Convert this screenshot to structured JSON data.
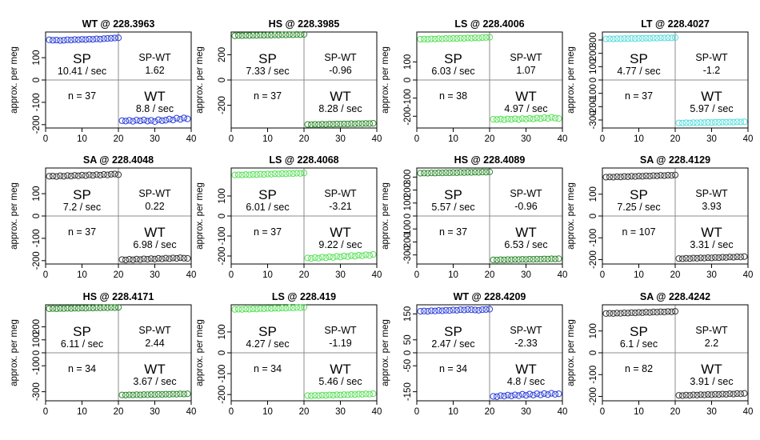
{
  "figure": {
    "ylabel": "approx. per meg",
    "x_ticks": [
      0,
      10,
      20,
      30,
      40
    ],
    "colors": {
      "blue": "#2b3fd9",
      "green": "#2e8b2e",
      "lightgreen": "#55e055",
      "cyan": "#55dddd",
      "black": "#333333",
      "divider": "#8c8c8c",
      "frame": "#000000"
    }
  },
  "chart_data": [
    {
      "type": "scatter",
      "title": "WT @ 228.3963",
      "color": "blue",
      "xlim": [
        0,
        40
      ],
      "ylim": [
        -215,
        215
      ],
      "yticks": [
        -200,
        -100,
        0,
        100
      ],
      "sp_label": "SP",
      "sp_rate": "10.41 / sec",
      "diff_label": "SP-WT",
      "diff_value": "1.62",
      "n_text": "n = 37",
      "wt_label": "WT",
      "wt_rate": "8.8 / sec",
      "sp_values": [
        180,
        178,
        179,
        177,
        178,
        180,
        179,
        181,
        180,
        182,
        181,
        183,
        182,
        184,
        183,
        185,
        186,
        187,
        188,
        189
      ],
      "wt_values": [
        -182,
        -184,
        -181,
        -185,
        -180,
        -183,
        -179,
        -184,
        -181,
        -186,
        -178,
        -182,
        -180,
        -175,
        -179,
        -171,
        -176,
        -170,
        -174
      ]
    },
    {
      "type": "scatter",
      "title": "HS @ 228.3985",
      "color": "green",
      "xlim": [
        0,
        40
      ],
      "ylim": [
        -380,
        380
      ],
      "yticks": [
        -200,
        0,
        200
      ],
      "sp_label": "SP",
      "sp_rate": "7.33 / sec",
      "diff_label": "SP-WT",
      "diff_value": "-0.96",
      "n_text": "n = 37",
      "wt_label": "WT",
      "wt_rate": "8.28 / sec",
      "sp_values": [
        350,
        352,
        351,
        353,
        352,
        354,
        353,
        355,
        354,
        356,
        355,
        357,
        356,
        358,
        357,
        359,
        358,
        360,
        359,
        361
      ],
      "wt_values": [
        -352,
        -353,
        -351,
        -352,
        -350,
        -351,
        -349,
        -350,
        -348,
        -349,
        -347,
        -348,
        -346,
        -347,
        -345,
        -346,
        -344,
        -345,
        -343
      ]
    },
    {
      "type": "scatter",
      "title": "LS @ 228.4006",
      "color": "lightgreen",
      "xlim": [
        0,
        40
      ],
      "ylim": [
        -265,
        265
      ],
      "yticks": [
        -200,
        -100,
        0,
        100
      ],
      "sp_label": "SP",
      "sp_rate": "6.03 / sec",
      "diff_label": "SP-WT",
      "diff_value": "1.07",
      "n_text": "n = 38",
      "wt_label": "WT",
      "wt_rate": "4.97 / sec",
      "sp_values": [
        225,
        226,
        225,
        227,
        226,
        228,
        227,
        229,
        228,
        230,
        229,
        231,
        230,
        232,
        231,
        233,
        232,
        234,
        235,
        236
      ],
      "wt_values": [
        -217,
        -218,
        -216,
        -219,
        -215,
        -217,
        -214,
        -218,
        -213,
        -216,
        -212,
        -215,
        -210,
        -213,
        -208,
        -212,
        -206,
        -210,
        -213
      ]
    },
    {
      "type": "scatter",
      "title": "LT @ 228.4027",
      "color": "cyan",
      "xlim": [
        0,
        40
      ],
      "ylim": [
        -360,
        360
      ],
      "yticks": [
        -300,
        -200,
        -100,
        0,
        100,
        200,
        300
      ],
      "sp_label": "SP",
      "sp_rate": "4.77 / sec",
      "diff_label": "SP-WT",
      "diff_value": "-1.2",
      "n_text": "n = 37",
      "wt_label": "WT",
      "wt_rate": "5.97 / sec",
      "sp_values": [
        308,
        309,
        308,
        310,
        309,
        311,
        310,
        312,
        311,
        313,
        312,
        314,
        313,
        315,
        314,
        316,
        315,
        317,
        316,
        318
      ],
      "wt_values": [
        -322,
        -323,
        -321,
        -322,
        -320,
        -321,
        -319,
        -320,
        -318,
        -319,
        -317,
        -318,
        -316,
        -317,
        -315,
        -316,
        -314,
        -315,
        -313
      ]
    },
    {
      "type": "scatter",
      "title": "SA @ 228.4048",
      "color": "black",
      "xlim": [
        0,
        40
      ],
      "ylim": [
        -215,
        215
      ],
      "yticks": [
        -200,
        -100,
        0,
        100
      ],
      "sp_label": "SP",
      "sp_rate": "7.2 / sec",
      "diff_label": "SP-WT",
      "diff_value": "0.22",
      "n_text": "n = 37",
      "wt_label": "WT",
      "wt_rate": "6.98 / sec",
      "sp_values": [
        178,
        179,
        177,
        180,
        178,
        181,
        179,
        182,
        180,
        183,
        181,
        184,
        182,
        185,
        183,
        186,
        184,
        187,
        188,
        185
      ],
      "wt_values": [
        -195,
        -197,
        -194,
        -196,
        -193,
        -195,
        -192,
        -194,
        -191,
        -193,
        -190,
        -192,
        -189,
        -191,
        -188,
        -190,
        -187,
        -189,
        -190
      ]
    },
    {
      "type": "scatter",
      "title": "LS @ 228.4068",
      "color": "lightgreen",
      "xlim": [
        0,
        40
      ],
      "ylim": [
        -240,
        240
      ],
      "yticks": [
        -200,
        -100,
        0,
        100
      ],
      "sp_label": "SP",
      "sp_rate": "6.01 / sec",
      "diff_label": "SP-WT",
      "diff_value": "-3.21",
      "n_text": "n = 37",
      "wt_label": "WT",
      "wt_rate": "9.22 / sec",
      "sp_values": [
        205,
        206,
        205,
        207,
        206,
        208,
        207,
        209,
        208,
        210,
        209,
        211,
        210,
        212,
        211,
        213,
        212,
        214,
        213,
        215
      ],
      "wt_values": [
        -210,
        -212,
        -208,
        -211,
        -206,
        -209,
        -204,
        -207,
        -202,
        -205,
        -200,
        -203,
        -198,
        -201,
        -196,
        -199,
        -194,
        -197,
        -192
      ]
    },
    {
      "type": "scatter",
      "title": "HS @ 228.4089",
      "color": "green",
      "xlim": [
        0,
        40
      ],
      "ylim": [
        -370,
        370
      ],
      "yticks": [
        -300,
        -200,
        -100,
        0,
        100,
        200,
        300
      ],
      "sp_label": "SP",
      "sp_rate": "5.57 / sec",
      "diff_label": "SP-WT",
      "diff_value": "-0.96",
      "n_text": "n = 37",
      "wt_label": "WT",
      "wt_rate": "6.53 / sec",
      "sp_values": [
        330,
        331,
        330,
        332,
        331,
        333,
        332,
        334,
        333,
        335,
        334,
        336,
        335,
        337,
        336,
        338,
        337,
        339,
        338,
        340
      ],
      "wt_values": [
        -338,
        -339,
        -337,
        -338,
        -336,
        -337,
        -335,
        -336,
        -334,
        -335,
        -333,
        -334,
        -332,
        -333,
        -331,
        -332,
        -330,
        -331,
        -329
      ]
    },
    {
      "type": "scatter",
      "title": "SA @ 228.4129",
      "color": "black",
      "xlim": [
        0,
        40
      ],
      "ylim": [
        -220,
        220
      ],
      "yticks": [
        -200,
        -100,
        0,
        100
      ],
      "sp_label": "SP",
      "sp_rate": "7.25 / sec",
      "diff_label": "SP-WT",
      "diff_value": "3.93",
      "n_text": "n = 107",
      "wt_label": "WT",
      "wt_rate": "3.31 / sec",
      "sp_values": [
        178,
        179,
        178,
        180,
        179,
        181,
        180,
        182,
        181,
        183,
        182,
        184,
        183,
        185,
        184,
        186,
        185,
        187,
        186,
        188
      ],
      "wt_values": [
        -195,
        -196,
        -194,
        -195,
        -193,
        -194,
        -192,
        -193,
        -191,
        -192,
        -190,
        -191,
        -189,
        -190,
        -188,
        -189,
        -187,
        -188,
        -186
      ]
    },
    {
      "type": "scatter",
      "title": "HS @ 228.4171",
      "color": "green",
      "xlim": [
        0,
        40
      ],
      "ylim": [
        -370,
        370
      ],
      "yticks": [
        -300,
        -100,
        0,
        100,
        200
      ],
      "sp_label": "SP",
      "sp_rate": "6.11 / sec",
      "diff_label": "SP-WT",
      "diff_value": "2.44",
      "n_text": "n = 34",
      "wt_label": "WT",
      "wt_rate": "3.67 / sec",
      "sp_values": [
        340,
        341,
        340,
        342,
        341,
        343,
        342,
        344,
        343,
        345,
        344,
        346,
        345,
        347,
        346,
        348,
        347,
        349,
        348,
        350
      ],
      "wt_values": [
        -325,
        -326,
        -324,
        -325,
        -323,
        -324,
        -322,
        -323,
        -321,
        -322,
        -320,
        -321,
        -319,
        -320,
        -318,
        -319,
        -317,
        -318,
        -316
      ]
    },
    {
      "type": "scatter",
      "title": "LS @ 228.419",
      "color": "lightgreen",
      "xlim": [
        0,
        40
      ],
      "ylim": [
        -230,
        230
      ],
      "yticks": [
        -200,
        -100,
        0,
        100
      ],
      "sp_label": "SP",
      "sp_rate": "4.27 / sec",
      "diff_label": "SP-WT",
      "diff_value": "-1.19",
      "n_text": "n = 34",
      "wt_label": "WT",
      "wt_rate": "5.46 / sec",
      "sp_values": [
        208,
        209,
        208,
        210,
        209,
        211,
        210,
        212,
        211,
        213,
        212,
        214,
        213,
        215,
        214,
        216,
        215,
        217,
        216,
        218
      ],
      "wt_values": [
        -205,
        -206,
        -204,
        -205,
        -203,
        -204,
        -202,
        -203,
        -201,
        -202,
        -200,
        -201,
        -199,
        -200,
        -198,
        -199,
        -197,
        -198,
        -196
      ]
    },
    {
      "type": "scatter",
      "title": "WT @ 228.4209",
      "color": "blue",
      "xlim": [
        0,
        40
      ],
      "ylim": [
        -185,
        185
      ],
      "yticks": [
        -150,
        -50,
        0,
        50,
        150
      ],
      "sp_label": "SP",
      "sp_rate": "2.47 / sec",
      "diff_label": "SP-WT",
      "diff_value": "-2.33",
      "n_text": "n = 34",
      "wt_label": "WT",
      "wt_rate": "4.8 / sec",
      "sp_values": [
        160,
        161,
        160,
        162,
        161,
        163,
        162,
        164,
        163,
        165,
        164,
        166,
        165,
        167,
        166,
        165,
        164,
        166,
        167,
        168
      ],
      "wt_values": [
        -168,
        -169,
        -165,
        -167,
        -163,
        -166,
        -162,
        -165,
        -160,
        -164,
        -159,
        -163,
        -158,
        -162,
        -157,
        -161,
        -156,
        -160,
        -158
      ]
    },
    {
      "type": "scatter",
      "title": "SA @ 228.4242",
      "color": "black",
      "xlim": [
        0,
        40
      ],
      "ylim": [
        -220,
        220
      ],
      "yticks": [
        -200,
        -100,
        0,
        100
      ],
      "sp_label": "SP",
      "sp_rate": "6.1 / sec",
      "diff_label": "SP-WT",
      "diff_value": "2.2",
      "n_text": "n = 82",
      "wt_label": "WT",
      "wt_rate": "3.91 / sec",
      "sp_values": [
        180,
        181,
        180,
        182,
        181,
        183,
        182,
        184,
        183,
        185,
        184,
        186,
        185,
        187,
        186,
        188,
        187,
        189,
        188,
        190
      ],
      "wt_values": [
        -195,
        -196,
        -194,
        -195,
        -193,
        -194,
        -192,
        -193,
        -191,
        -192,
        -190,
        -191,
        -189,
        -190,
        -188,
        -189,
        -187,
        -188,
        -186
      ]
    }
  ]
}
